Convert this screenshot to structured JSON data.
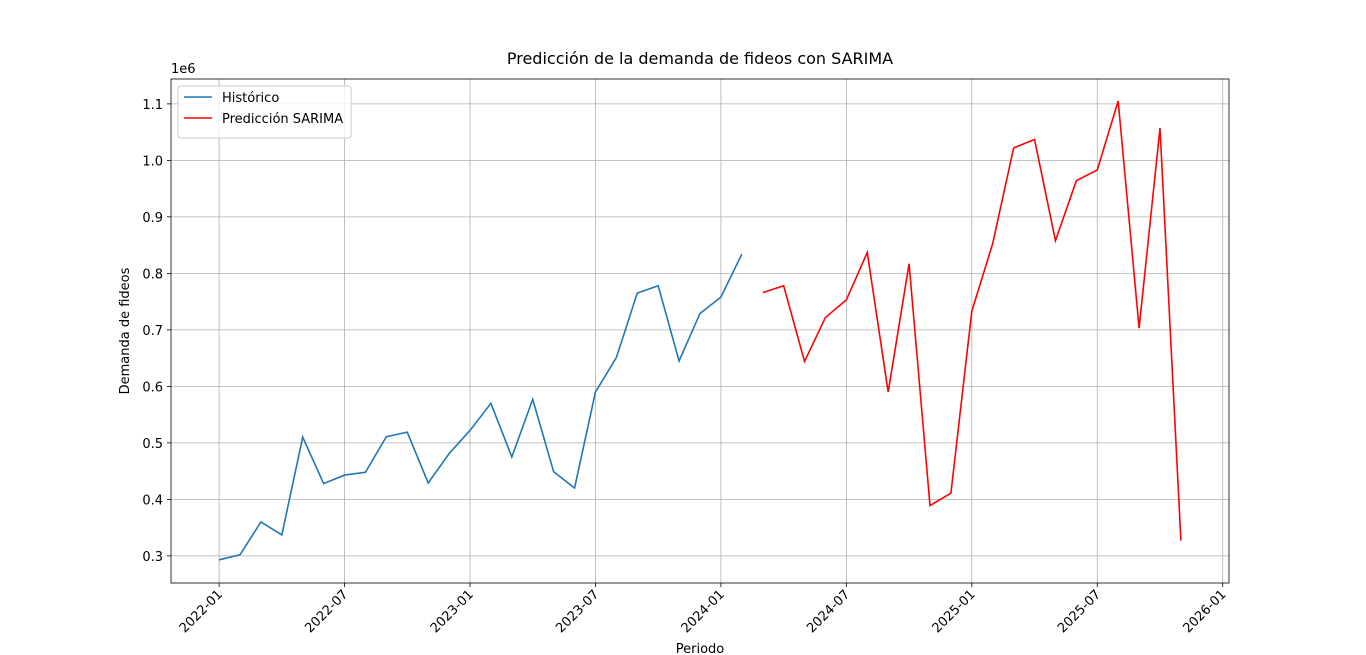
{
  "chart_data": {
    "type": "line",
    "title": "Predicción de la demanda de fideos con SARIMA",
    "x_label": "Periodo",
    "y_label": "Demanda de fideos",
    "y_offset_label": "1e6",
    "series": [
      {
        "name": "Histórico",
        "color": "#1f77b4",
        "x": [
          "2022-01",
          "2022-02",
          "2022-03",
          "2022-04",
          "2022-05",
          "2022-06",
          "2022-07",
          "2022-08",
          "2022-09",
          "2022-10",
          "2022-11",
          "2022-12",
          "2023-01",
          "2023-02",
          "2023-03",
          "2023-04",
          "2023-05",
          "2023-06",
          "2023-07",
          "2023-08",
          "2023-09",
          "2023-10",
          "2023-11",
          "2023-12",
          "2024-01",
          "2024-02"
        ],
        "values": [
          0.293,
          0.302,
          0.36,
          0.337,
          0.51,
          0.428,
          0.443,
          0.448,
          0.511,
          0.519,
          0.429,
          0.481,
          0.522,
          0.57,
          0.475,
          0.577,
          0.449,
          0.42,
          0.59,
          0.651,
          0.765,
          0.778,
          0.645,
          0.729,
          0.758,
          0.834
        ]
      },
      {
        "name": "Predicción SARIMA",
        "color": "#ff0000",
        "x": [
          "2024-03",
          "2024-04",
          "2024-05",
          "2024-06",
          "2024-07",
          "2024-08",
          "2024-09",
          "2024-10",
          "2024-11",
          "2024-12",
          "2025-01",
          "2025-02",
          "2025-03",
          "2025-04",
          "2025-05",
          "2025-06",
          "2025-07",
          "2025-08",
          "2025-09",
          "2025-10",
          "2025-11"
        ],
        "values": [
          0.766,
          0.778,
          0.644,
          0.722,
          0.753,
          0.837,
          0.59,
          0.817,
          0.389,
          0.411,
          0.733,
          0.853,
          1.022,
          1.037,
          0.858,
          0.964,
          0.983,
          1.105,
          0.703,
          1.057,
          0.327
        ]
      }
    ],
    "xticks": [
      "2022-01",
      "2022-07",
      "2023-01",
      "2023-07",
      "2024-01",
      "2024-07",
      "2025-01",
      "2025-07",
      "2026-01"
    ],
    "ylim": [
      0.252,
      1.144
    ],
    "yticks": [
      0.3,
      0.4,
      0.5,
      0.6,
      0.7,
      0.8,
      0.9,
      {
        "value": 1,
        "label": "1.0"
      },
      1.1
    ],
    "grid": true,
    "legend": "upper-left"
  }
}
